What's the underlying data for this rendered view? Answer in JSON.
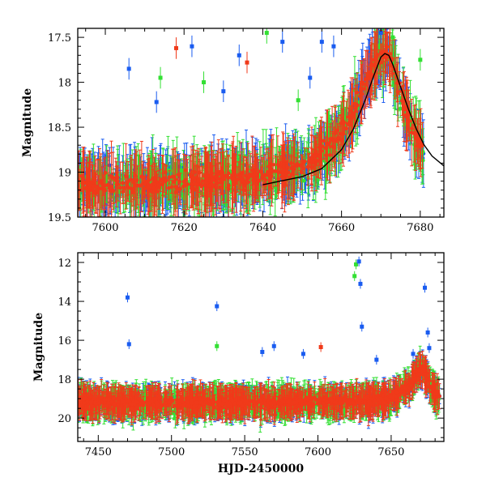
{
  "colors": {
    "blue": "#1a5cf0",
    "green": "#33e033",
    "red": "#f03a1a",
    "model": "#000000"
  },
  "chart_data": [
    {
      "type": "scatter",
      "panel": "top",
      "xlabel": "",
      "ylabel": "Magnitude",
      "xlim": [
        7593,
        7686
      ],
      "ylim": [
        19.5,
        17.4
      ],
      "y_inverted": true,
      "xticks": [
        7600,
        7620,
        7640,
        7660,
        7680
      ],
      "yticks": [
        17.5,
        18,
        18.5,
        19,
        19.5
      ],
      "series_colors": [
        "blue",
        "green",
        "red"
      ],
      "baseline_magnitude": 19.15,
      "error_bars": true,
      "model_curve": {
        "color": "model",
        "x": [
          7640,
          7650,
          7655,
          7660,
          7663,
          7666,
          7668,
          7670,
          7671,
          7672,
          7673,
          7675,
          7677,
          7679,
          7681,
          7683,
          7686
        ],
        "y": [
          19.14,
          19.05,
          18.96,
          18.75,
          18.52,
          18.2,
          17.95,
          17.72,
          17.68,
          17.7,
          17.8,
          18.05,
          18.3,
          18.52,
          18.7,
          18.82,
          18.93
        ]
      },
      "outliers": [
        {
          "x": 7606,
          "y": 17.85,
          "s": "blue"
        },
        {
          "x": 7613,
          "y": 18.22,
          "s": "blue"
        },
        {
          "x": 7614,
          "y": 17.95,
          "s": "green"
        },
        {
          "x": 7618,
          "y": 17.62,
          "s": "red"
        },
        {
          "x": 7622,
          "y": 17.6,
          "s": "blue"
        },
        {
          "x": 7625,
          "y": 18.0,
          "s": "green"
        },
        {
          "x": 7630,
          "y": 18.1,
          "s": "blue"
        },
        {
          "x": 7634,
          "y": 17.7,
          "s": "blue"
        },
        {
          "x": 7636,
          "y": 17.78,
          "s": "red"
        },
        {
          "x": 7641,
          "y": 17.45,
          "s": "green"
        },
        {
          "x": 7645,
          "y": 17.55,
          "s": "blue"
        },
        {
          "x": 7649,
          "y": 18.2,
          "s": "green"
        },
        {
          "x": 7652,
          "y": 17.95,
          "s": "blue"
        },
        {
          "x": 7655,
          "y": 17.55,
          "s": "blue"
        },
        {
          "x": 7658,
          "y": 17.6,
          "s": "blue"
        },
        {
          "x": 7670,
          "y": 17.45,
          "s": "blue"
        },
        {
          "x": 7673,
          "y": 17.5,
          "s": "green"
        },
        {
          "x": 7680,
          "y": 17.75,
          "s": "green"
        }
      ]
    },
    {
      "type": "scatter",
      "panel": "bottom",
      "xlabel": "HJD-2450000",
      "ylabel": "Magnitude",
      "xlim": [
        7436,
        7686
      ],
      "ylim": [
        21.2,
        11.5
      ],
      "y_inverted": true,
      "xticks": [
        7450,
        7500,
        7550,
        7600,
        7650
      ],
      "yticks": [
        12,
        14,
        16,
        18,
        20
      ],
      "series_colors": [
        "blue",
        "green",
        "red"
      ],
      "baseline_magnitude": 19.2,
      "error_bars": true,
      "outliers": [
        {
          "x": 7470,
          "y": 13.8,
          "s": "blue"
        },
        {
          "x": 7471,
          "y": 16.2,
          "s": "blue"
        },
        {
          "x": 7531,
          "y": 14.25,
          "s": "blue"
        },
        {
          "x": 7531,
          "y": 16.3,
          "s": "green"
        },
        {
          "x": 7562,
          "y": 16.6,
          "s": "blue"
        },
        {
          "x": 7570,
          "y": 16.3,
          "s": "blue"
        },
        {
          "x": 7590,
          "y": 16.7,
          "s": "blue"
        },
        {
          "x": 7602,
          "y": 16.35,
          "s": "red"
        },
        {
          "x": 7625,
          "y": 12.7,
          "s": "green"
        },
        {
          "x": 7626,
          "y": 12.1,
          "s": "green"
        },
        {
          "x": 7628,
          "y": 11.95,
          "s": "blue"
        },
        {
          "x": 7629,
          "y": 13.1,
          "s": "blue"
        },
        {
          "x": 7630,
          "y": 15.3,
          "s": "blue"
        },
        {
          "x": 7640,
          "y": 17.0,
          "s": "blue"
        },
        {
          "x": 7665,
          "y": 16.7,
          "s": "blue"
        },
        {
          "x": 7673,
          "y": 13.3,
          "s": "blue"
        },
        {
          "x": 7675,
          "y": 15.6,
          "s": "blue"
        },
        {
          "x": 7676,
          "y": 16.4,
          "s": "blue"
        }
      ]
    }
  ]
}
